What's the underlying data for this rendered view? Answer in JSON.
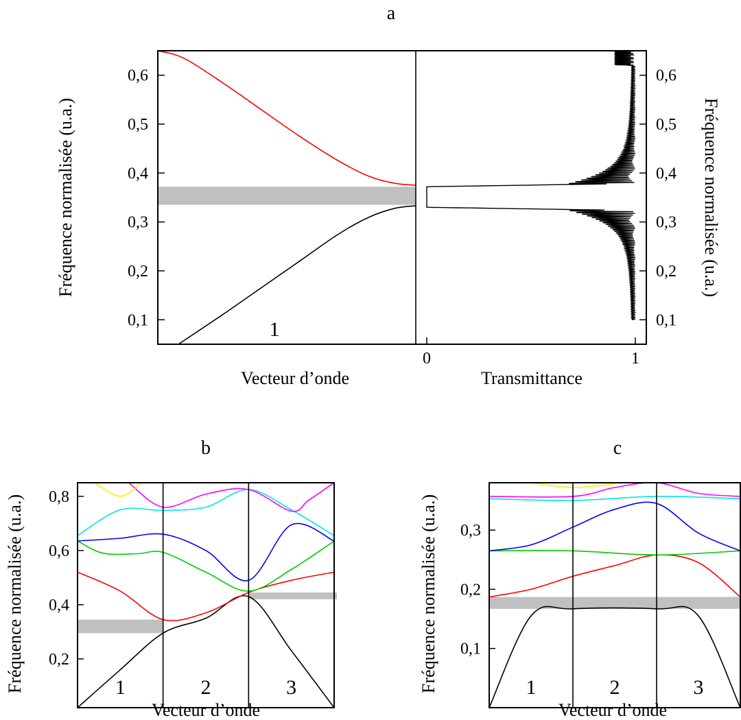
{
  "chart_data": [
    {
      "id": "a",
      "type": "line",
      "panel_label": "a",
      "left": {
        "xlabel": "Vecteur d’onde",
        "ylabel": "Fréquence normalisée (u.a.)",
        "ylim": [
          0.05,
          0.65
        ],
        "yticks": [
          0.1,
          0.2,
          0.3,
          0.4,
          0.5,
          0.6
        ],
        "ytick_labels": [
          "0,1",
          "0,2",
          "0,3",
          "0,4",
          "0,5",
          "0,6"
        ],
        "zone_labels": [
          "1"
        ],
        "gap_band": [
          0.335,
          0.372
        ],
        "bands": [
          {
            "color": "#ff0000",
            "points": [
              [
                0,
                0.65
              ],
              [
                0.1,
                0.635
              ],
              [
                0.25,
                0.585
              ],
              [
                0.4,
                0.53
              ],
              [
                0.55,
                0.475
              ],
              [
                0.7,
                0.425
              ],
              [
                0.82,
                0.393
              ],
              [
                0.92,
                0.379
              ],
              [
                1,
                0.375
              ]
            ]
          },
          {
            "color": "#000000",
            "points": [
              [
                0.08,
                0.05
              ],
              [
                0.25,
                0.11
              ],
              [
                0.4,
                0.165
              ],
              [
                0.55,
                0.22
              ],
              [
                0.7,
                0.275
              ],
              [
                0.82,
                0.31
              ],
              [
                0.92,
                0.328
              ],
              [
                1,
                0.333
              ]
            ]
          }
        ]
      },
      "right": {
        "xlabel": "Transmittance",
        "ylabel": "Fréquence normalisée (u.a.)",
        "xlim": [
          0,
          1
        ],
        "xticks": [
          0,
          1
        ],
        "xtick_labels": [
          "0",
          "1"
        ],
        "transmission_gap": [
          0.33,
          0.372
        ]
      }
    },
    {
      "id": "b",
      "type": "line",
      "panel_label": "b",
      "xlabel": "Vecteur d’onde",
      "ylabel": "Fréquence normalisée (u.a.)",
      "ylim": [
        0.02,
        0.85
      ],
      "yticks": [
        0.2,
        0.4,
        0.6,
        0.8
      ],
      "ytick_labels": [
        "0,2",
        "0,4",
        "0,6",
        "0,8"
      ],
      "zone_labels": [
        "1",
        "2",
        "3"
      ],
      "gap_bands": [
        [
          0,
          1,
          0.295,
          0.345
        ],
        [
          2,
          3,
          0.42,
          0.445
        ]
      ],
      "bands": [
        {
          "color": "#000000",
          "points": [
            [
              0,
              0.02
            ],
            [
              0.5,
              0.16
            ],
            [
              1,
              0.295
            ],
            [
              1.5,
              0.35
            ],
            [
              2,
              0.43
            ],
            [
              2.5,
              0.23
            ],
            [
              3,
              0.02
            ]
          ]
        },
        {
          "color": "#ff0000",
          "points": [
            [
              0,
              0.52
            ],
            [
              0.5,
              0.45
            ],
            [
              1,
              0.345
            ],
            [
              1.5,
              0.37
            ],
            [
              2,
              0.445
            ],
            [
              2.5,
              0.49
            ],
            [
              3,
              0.52
            ]
          ]
        },
        {
          "color": "#00cc00",
          "points": [
            [
              0,
              0.635
            ],
            [
              0.3,
              0.59
            ],
            [
              0.7,
              0.588
            ],
            [
              1,
              0.593
            ],
            [
              1.5,
              0.52
            ],
            [
              2,
              0.45
            ],
            [
              2.5,
              0.53
            ],
            [
              3,
              0.635
            ]
          ]
        },
        {
          "color": "#0000ff",
          "points": [
            [
              0,
              0.635
            ],
            [
              0.5,
              0.645
            ],
            [
              1,
              0.66
            ],
            [
              1.5,
              0.6
            ],
            [
              2,
              0.49
            ],
            [
              2.5,
              0.695
            ],
            [
              3,
              0.635
            ]
          ]
        },
        {
          "color": "#00e5e5",
          "points": [
            [
              0,
              0.655
            ],
            [
              0.5,
              0.75
            ],
            [
              1,
              0.748
            ],
            [
              1.5,
              0.76
            ],
            [
              2,
              0.825
            ],
            [
              2.5,
              0.75
            ],
            [
              3,
              0.655
            ]
          ]
        },
        {
          "color": "#ff00ff",
          "points": [
            [
              0.6,
              0.85
            ],
            [
              1,
              0.76
            ],
            [
              1.5,
              0.808
            ],
            [
              2,
              0.825
            ],
            [
              2.5,
              0.745
            ],
            [
              2.7,
              0.785
            ],
            [
              3,
              0.85
            ]
          ]
        },
        {
          "color": "#ffee00",
          "points": [
            [
              0.2,
              0.85
            ],
            [
              0.5,
              0.8
            ],
            [
              0.75,
              0.85
            ]
          ]
        }
      ]
    },
    {
      "id": "c",
      "type": "line",
      "panel_label": "c",
      "xlabel": "Vecteur d’onde",
      "ylabel": "Fréquence normalisée (u.a.)",
      "ylim": [
        0.0,
        0.38
      ],
      "yticks": [
        0.1,
        0.2,
        0.3
      ],
      "ytick_labels": [
        "0,1",
        "0,2",
        "0,3"
      ],
      "zone_labels": [
        "1",
        "2",
        "3"
      ],
      "gap_bands": [
        [
          0,
          3,
          0.167,
          0.187
        ]
      ],
      "bands": [
        {
          "color": "#000000",
          "points": [
            [
              0,
              0.0
            ],
            [
              0.5,
              0.155
            ],
            [
              1,
              0.167
            ],
            [
              2,
              0.167
            ],
            [
              2.5,
              0.155
            ],
            [
              3,
              0.0
            ]
          ]
        },
        {
          "color": "#ff0000",
          "points": [
            [
              0,
              0.187
            ],
            [
              0.5,
              0.2
            ],
            [
              1,
              0.222
            ],
            [
              1.5,
              0.24
            ],
            [
              2,
              0.258
            ],
            [
              2.5,
              0.245
            ],
            [
              3,
              0.187
            ]
          ]
        },
        {
          "color": "#00cc00",
          "points": [
            [
              0,
              0.265
            ],
            [
              1,
              0.265
            ],
            [
              2,
              0.258
            ],
            [
              3,
              0.265
            ]
          ]
        },
        {
          "color": "#0000ff",
          "points": [
            [
              0,
              0.265
            ],
            [
              0.5,
              0.275
            ],
            [
              1,
              0.305
            ],
            [
              1.5,
              0.335
            ],
            [
              2,
              0.345
            ],
            [
              2.5,
              0.295
            ],
            [
              3,
              0.265
            ]
          ]
        },
        {
          "color": "#00e5e5",
          "points": [
            [
              0,
              0.353
            ],
            [
              1,
              0.35
            ],
            [
              2,
              0.357
            ],
            [
              3,
              0.353
            ]
          ]
        },
        {
          "color": "#ff00ff",
          "points": [
            [
              0,
              0.357
            ],
            [
              1,
              0.357
            ],
            [
              1.5,
              0.372
            ],
            [
              2,
              0.38
            ],
            [
              2.5,
              0.362
            ],
            [
              3,
              0.357
            ]
          ]
        },
        {
          "color": "#ffee00",
          "points": [
            [
              0.5,
              0.38
            ],
            [
              1,
              0.372
            ],
            [
              1.5,
              0.378
            ]
          ]
        }
      ]
    }
  ]
}
